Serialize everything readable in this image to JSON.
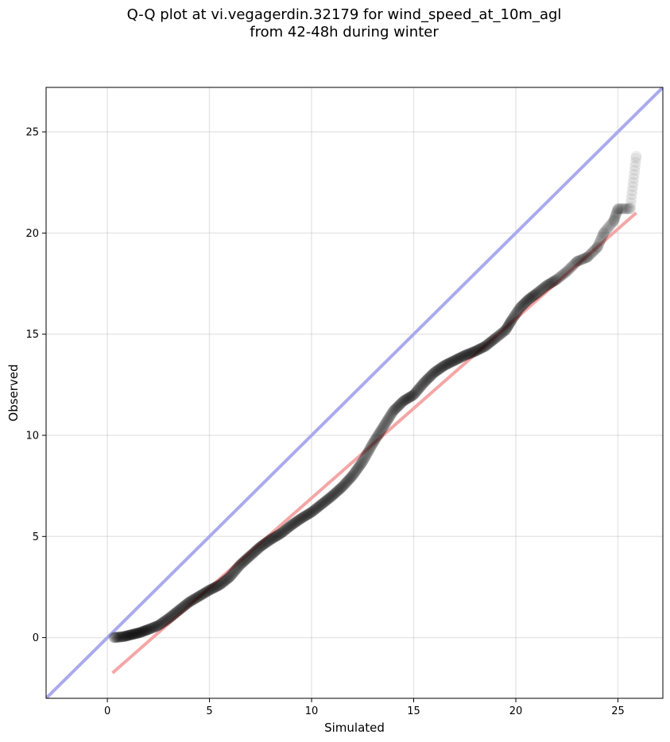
{
  "chart_data": {
    "type": "scatter",
    "title_line1": "Q-Q plot at vi.vegagerdin.32179 for wind_speed_at_10m_agl",
    "title_line2": "from 42-48h during winter",
    "xlabel": "Simulated",
    "ylabel": "Observed",
    "xlim": [
      -3,
      27.2
    ],
    "ylim": [
      -3,
      27.2
    ],
    "xticks": [
      0,
      5,
      10,
      15,
      20,
      25
    ],
    "yticks": [
      0,
      5,
      10,
      15,
      20,
      25
    ],
    "grid": true,
    "colors": {
      "identity_line": "#aaaaee",
      "fit_line": "#f4a6a6",
      "points": "#000000"
    },
    "identity_line": {
      "x": [
        -3,
        27.2
      ],
      "y": [
        -3,
        27.2
      ]
    },
    "fit_line": {
      "x": [
        0.25,
        25.9
      ],
      "y": [
        -1.75,
        21.0
      ]
    },
    "quantile_curve": [
      [
        0.3,
        0.0
      ],
      [
        0.8,
        0.05
      ],
      [
        1.2,
        0.15
      ],
      [
        1.6,
        0.25
      ],
      [
        2.0,
        0.4
      ],
      [
        2.5,
        0.6
      ],
      [
        3.0,
        0.95
      ],
      [
        3.5,
        1.35
      ],
      [
        4.0,
        1.75
      ],
      [
        4.5,
        2.05
      ],
      [
        5.0,
        2.35
      ],
      [
        5.5,
        2.6
      ],
      [
        6.0,
        3.0
      ],
      [
        6.5,
        3.6
      ],
      [
        7.0,
        4.05
      ],
      [
        7.5,
        4.5
      ],
      [
        8.0,
        4.85
      ],
      [
        8.5,
        5.15
      ],
      [
        9.0,
        5.55
      ],
      [
        9.5,
        5.9
      ],
      [
        10.0,
        6.2
      ],
      [
        10.5,
        6.6
      ],
      [
        11.0,
        7.0
      ],
      [
        11.5,
        7.45
      ],
      [
        12.0,
        8.0
      ],
      [
        12.5,
        8.7
      ],
      [
        13.0,
        9.6
      ],
      [
        13.5,
        10.4
      ],
      [
        14.0,
        11.2
      ],
      [
        14.5,
        11.7
      ],
      [
        15.0,
        12.0
      ],
      [
        15.5,
        12.6
      ],
      [
        16.0,
        13.1
      ],
      [
        16.5,
        13.45
      ],
      [
        17.0,
        13.7
      ],
      [
        17.5,
        13.95
      ],
      [
        18.0,
        14.15
      ],
      [
        18.5,
        14.4
      ],
      [
        19.0,
        14.8
      ],
      [
        19.5,
        15.2
      ],
      [
        19.8,
        15.7
      ],
      [
        20.2,
        16.3
      ],
      [
        20.6,
        16.7
      ],
      [
        21.0,
        17.0
      ],
      [
        21.5,
        17.4
      ],
      [
        22.0,
        17.7
      ],
      [
        22.5,
        18.1
      ],
      [
        23.0,
        18.6
      ],
      [
        23.5,
        18.8
      ],
      [
        24.0,
        19.3
      ],
      [
        24.3,
        20.0
      ],
      [
        24.8,
        20.6
      ],
      [
        25.0,
        21.2
      ],
      [
        25.6,
        21.2
      ],
      [
        25.9,
        23.8
      ]
    ]
  }
}
